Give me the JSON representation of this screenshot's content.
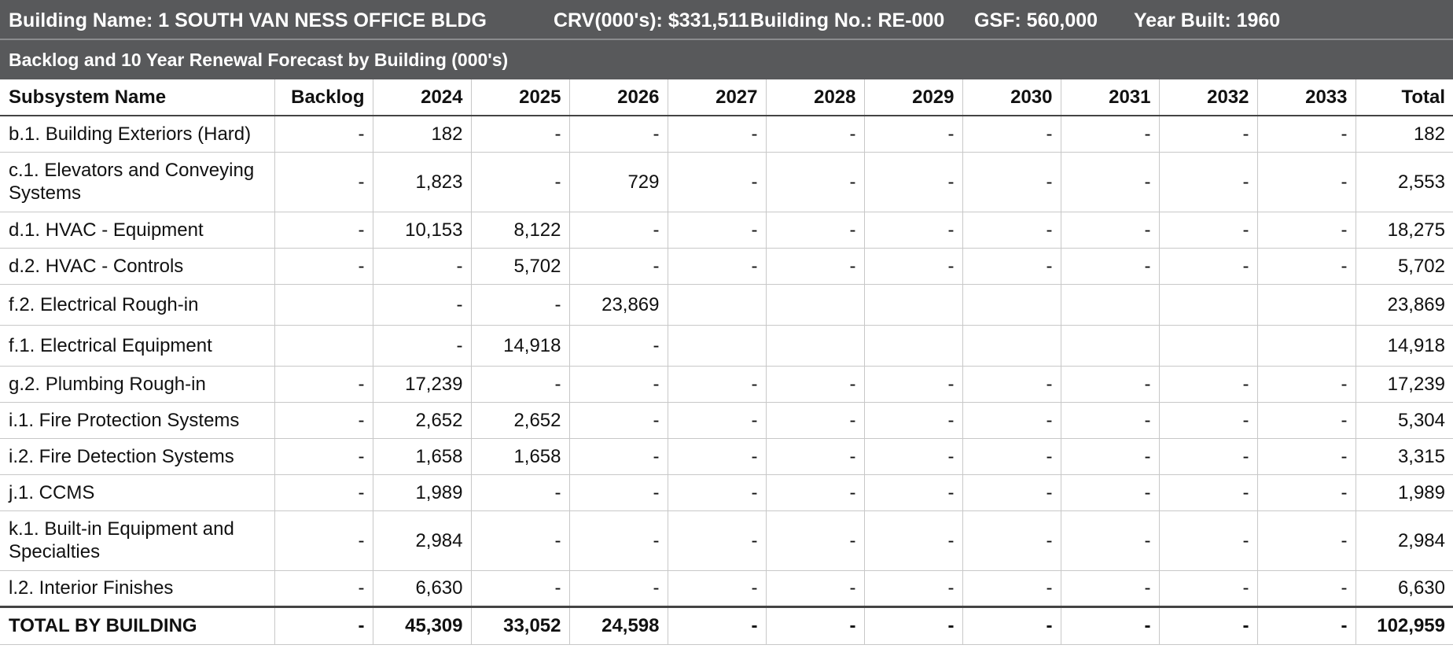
{
  "header": {
    "building_name": "Building Name: 1 SOUTH VAN NESS OFFICE BLDG",
    "crv": "CRV(000's): $331,511",
    "building_no": "Building No.: RE-000",
    "gsf": "GSF: 560,000",
    "year_built": "Year Built: 1960"
  },
  "subheader": {
    "title": "Backlog and 10 Year Renewal Forecast by Building (000's)"
  },
  "table": {
    "columns": [
      "Subsystem Name",
      "Backlog",
      "2024",
      "2025",
      "2026",
      "2027",
      "2028",
      "2029",
      "2030",
      "2031",
      "2032",
      "2033",
      "Total"
    ],
    "rows": [
      {
        "name": "b.1. Building Exteriors (Hard)",
        "size": "r1",
        "cells": [
          "-",
          "182",
          "-",
          "-",
          "-",
          "-",
          "-",
          "-",
          "-",
          "-",
          "-",
          "182"
        ]
      },
      {
        "name": "c.1. Elevators and Conveying Systems",
        "size": "r2",
        "cells": [
          "-",
          "1,823",
          "-",
          "729",
          "-",
          "-",
          "-",
          "-",
          "-",
          "-",
          "-",
          "2,553"
        ]
      },
      {
        "name": "d.1. HVAC - Equipment",
        "size": "r1",
        "cells": [
          "-",
          "10,153",
          "8,122",
          "-",
          "-",
          "-",
          "-",
          "-",
          "-",
          "-",
          "-",
          "18,275"
        ]
      },
      {
        "name": "d.2.  HVAC - Controls",
        "size": "r1",
        "cells": [
          "-",
          "-",
          "5,702",
          "-",
          "-",
          "-",
          "-",
          "-",
          "-",
          "-",
          "-",
          "5,702"
        ]
      },
      {
        "name": "f.2. Electrical Rough-in",
        "size": "r3",
        "cells": [
          "",
          "-",
          "-",
          "23,869",
          "",
          "",
          "",
          "",
          "",
          "",
          "",
          "23,869"
        ]
      },
      {
        "name": "f.1. Electrical  Equipment",
        "size": "r3",
        "cells": [
          "",
          "-",
          "14,918",
          "-",
          "",
          "",
          "",
          "",
          "",
          "",
          "",
          "14,918"
        ]
      },
      {
        "name": "g.2. Plumbing Rough-in",
        "size": "r1",
        "cells": [
          "-",
          "17,239",
          "-",
          "-",
          "-",
          "-",
          "-",
          "-",
          "-",
          "-",
          "-",
          "17,239"
        ]
      },
      {
        "name": "i.1. Fire Protection Systems",
        "size": "r1",
        "cells": [
          "-",
          "2,652",
          "2,652",
          "-",
          "-",
          "-",
          "-",
          "-",
          "-",
          "-",
          "-",
          "5,304"
        ]
      },
      {
        "name": "i.2. Fire Detection Systems",
        "size": "r1",
        "cells": [
          "-",
          "1,658",
          "1,658",
          "-",
          "-",
          "-",
          "-",
          "-",
          "-",
          "-",
          "-",
          "3,315"
        ]
      },
      {
        "name": "j.1. CCMS",
        "size": "r1",
        "cells": [
          "-",
          "1,989",
          "-",
          "-",
          "-",
          "-",
          "-",
          "-",
          "-",
          "-",
          "-",
          "1,989"
        ]
      },
      {
        "name": "k.1. Built-in Equipment and Specialties",
        "size": "r2",
        "cells": [
          "-",
          "2,984",
          "-",
          "-",
          "-",
          "-",
          "-",
          "-",
          "-",
          "-",
          "-",
          "2,984"
        ]
      },
      {
        "name": "l.2. Interior Finishes",
        "size": "r1",
        "cells": [
          "-",
          "6,630",
          "-",
          "-",
          "-",
          "-",
          "-",
          "-",
          "-",
          "-",
          "-",
          "6,630"
        ]
      }
    ],
    "total": {
      "name": "TOTAL BY BUILDING",
      "cells": [
        "-",
        "45,309",
        "33,052",
        "24,598",
        "-",
        "-",
        "-",
        "-",
        "-",
        "-",
        "-",
        "102,959"
      ]
    }
  }
}
